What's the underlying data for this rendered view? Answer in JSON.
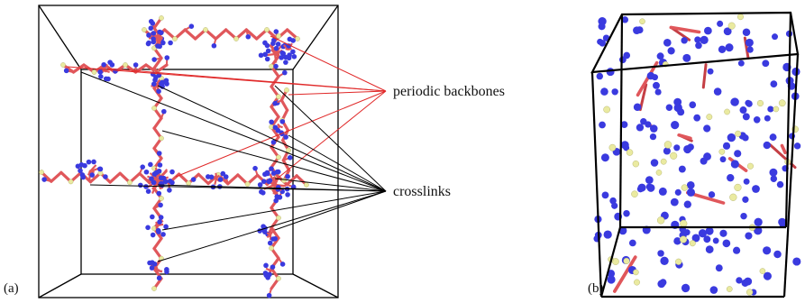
{
  "panels": [
    {
      "label": "(a)"
    },
    {
      "label": "(b)"
    }
  ],
  "annotations": {
    "backbones": "periodic backbones",
    "crosslinks": "crosslinks"
  },
  "colors": {
    "bond": "#e0575b",
    "bond_dark": "#c53f45",
    "nitrogen": "#3a3adf",
    "sulfur": "#eaeaa0",
    "box": "#000000",
    "pointer_red": "#e02828",
    "pointer_black": "#000000"
  }
}
